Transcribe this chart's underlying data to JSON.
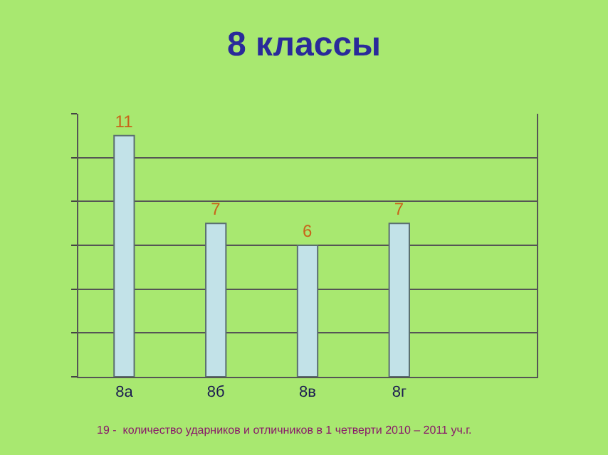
{
  "chart_data": {
    "type": "bar",
    "title": "8 классы",
    "categories": [
      "8а",
      "8б",
      "8в",
      "8г",
      null
    ],
    "values": [
      11,
      7,
      6,
      7,
      null
    ],
    "color": "#c2e2e8",
    "ylim": [
      0,
      12
    ],
    "yticks": [
      {
        "value": 0,
        "label": null
      },
      {
        "value": 2,
        "label": null
      },
      {
        "value": 4,
        "label": null
      },
      {
        "value": 6,
        "label": null
      },
      {
        "value": 8,
        "label": null
      },
      {
        "value": 10,
        "label": null
      },
      {
        "value": 12,
        "label": null
      }
    ],
    "tick_labels": "x",
    "grid": "y",
    "data_labels": true,
    "annotations": [
      "19 -  количество ударников и отличников в 1 четверти 2010 – 2011 уч.г."
    ]
  }
}
